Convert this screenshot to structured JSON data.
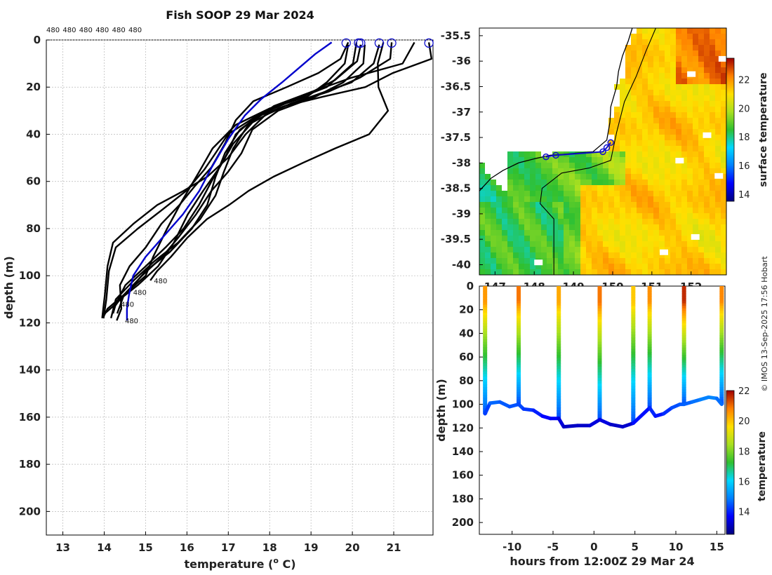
{
  "title": "Fish SOOP 29 Mar 2024",
  "copyright": "© IMOS 13-Sep-2025 17:56 Hobart",
  "colors": {
    "profile": "#000000",
    "mean": "#0000cc",
    "marker": "#1010cc",
    "land": "#ffffff",
    "coast": "#000000"
  },
  "chart_data": [
    {
      "name": "profiles",
      "type": "line",
      "xlabel": "temperature (° C)",
      "xlabel_main": "temperature (",
      "xlabel_sup": "o",
      "xlabel_end": " C)",
      "ylabel": "depth (m)",
      "xlim": [
        12.6,
        21.95
      ],
      "ylim": [
        0,
        210
      ],
      "xticks": [
        13,
        14,
        15,
        16,
        17,
        18,
        19,
        20,
        21
      ],
      "yticks": [
        0,
        20,
        40,
        60,
        80,
        100,
        120,
        140,
        160,
        180,
        200
      ],
      "grid": true,
      "top_labels": [
        "480",
        "480",
        "480",
        "480",
        "480",
        "480"
      ],
      "bottom_labels": [
        "480",
        "480",
        "480",
        "480"
      ],
      "surface_markers": [
        19.85,
        20.15,
        20.2,
        20.65,
        20.95,
        21.85
      ],
      "series": [
        {
          "name": "cast-1",
          "points": [
            [
              19.9,
              2
            ],
            [
              19.8,
              10
            ],
            [
              19.4,
              18
            ],
            [
              18.9,
              24
            ],
            [
              18.0,
              29
            ],
            [
              17.2,
              36
            ],
            [
              16.6,
              46
            ],
            [
              16.3,
              56
            ],
            [
              15.9,
              68
            ],
            [
              15.5,
              80
            ],
            [
              15.2,
              92
            ],
            [
              15.0,
              100
            ],
            [
              14.6,
              106
            ],
            [
              14.3,
              112
            ],
            [
              14.0,
              116
            ]
          ]
        },
        {
          "name": "cast-2",
          "points": [
            [
              20.2,
              2
            ],
            [
              20.1,
              9
            ],
            [
              19.6,
              17
            ],
            [
              18.8,
              24
            ],
            [
              17.9,
              30
            ],
            [
              17.3,
              38
            ],
            [
              16.9,
              48
            ],
            [
              16.7,
              58
            ],
            [
              16.5,
              70
            ],
            [
              16.1,
              80
            ],
            [
              15.6,
              90
            ],
            [
              15.0,
              98
            ],
            [
              14.6,
              106
            ],
            [
              14.1,
              114
            ],
            [
              13.95,
              118
            ]
          ]
        },
        {
          "name": "cast-3",
          "points": [
            [
              20.65,
              2
            ],
            [
              20.5,
              10
            ],
            [
              20.0,
              18
            ],
            [
              19.0,
              24
            ],
            [
              18.2,
              29
            ],
            [
              17.6,
              35
            ],
            [
              17.1,
              44
            ],
            [
              16.8,
              54
            ],
            [
              16.4,
              64
            ],
            [
              16.0,
              74
            ],
            [
              15.7,
              86
            ],
            [
              15.3,
              96
            ],
            [
              14.8,
              104
            ],
            [
              14.4,
              110
            ],
            [
              14.2,
              114
            ]
          ]
        },
        {
          "name": "cast-4",
          "points": [
            [
              20.95,
              1
            ],
            [
              20.9,
              8
            ],
            [
              20.2,
              16
            ],
            [
              19.4,
              22
            ],
            [
              18.5,
              27
            ],
            [
              17.9,
              32
            ],
            [
              17.4,
              40
            ],
            [
              17.0,
              50
            ],
            [
              16.5,
              58
            ],
            [
              15.9,
              64
            ],
            [
              15.3,
              70
            ],
            [
              14.7,
              78
            ],
            [
              14.2,
              86
            ],
            [
              14.1,
              96
            ],
            [
              14.0,
              108
            ],
            [
              13.95,
              118
            ]
          ]
        },
        {
          "name": "cast-5",
          "points": [
            [
              21.85,
              1
            ],
            [
              21.9,
              8
            ],
            [
              21.0,
              14
            ],
            [
              20.3,
              20
            ],
            [
              19.3,
              24
            ],
            [
              18.4,
              28
            ],
            [
              17.6,
              33
            ],
            [
              17.0,
              40
            ],
            [
              16.7,
              48
            ],
            [
              16.4,
              55
            ],
            [
              16.0,
              64
            ],
            [
              15.4,
              72
            ],
            [
              14.8,
              80
            ],
            [
              14.3,
              88
            ],
            [
              14.1,
              98
            ],
            [
              14.05,
              110
            ],
            [
              14.0,
              118
            ]
          ]
        },
        {
          "name": "cast-6",
          "points": [
            [
              20.75,
              1
            ],
            [
              20.6,
              10
            ],
            [
              20.65,
              20
            ],
            [
              20.85,
              30
            ],
            [
              20.4,
              40
            ],
            [
              19.6,
              46
            ],
            [
              18.8,
              52
            ],
            [
              18.1,
              58
            ],
            [
              17.5,
              64
            ],
            [
              17.0,
              70
            ],
            [
              16.5,
              76
            ],
            [
              16.0,
              84
            ],
            [
              15.6,
              92
            ],
            [
              15.3,
              98
            ],
            [
              15.1,
              102
            ]
          ]
        },
        {
          "name": "cast-7",
          "points": [
            [
              20.1,
              1
            ],
            [
              20.0,
              10
            ],
            [
              19.4,
              20
            ],
            [
              18.5,
              26
            ],
            [
              17.7,
              32
            ],
            [
              17.2,
              40
            ],
            [
              16.9,
              50
            ],
            [
              16.6,
              60
            ],
            [
              16.3,
              70
            ],
            [
              15.9,
              80
            ],
            [
              15.5,
              88
            ],
            [
              15.0,
              96
            ],
            [
              14.5,
              104
            ],
            [
              14.3,
              112
            ],
            [
              14.2,
              116
            ]
          ]
        },
        {
          "name": "cast-8",
          "points": [
            [
              19.9,
              1
            ],
            [
              19.7,
              8
            ],
            [
              19.2,
              14
            ],
            [
              18.4,
              20
            ],
            [
              17.6,
              26
            ],
            [
              17.2,
              34
            ],
            [
              16.9,
              44
            ],
            [
              16.6,
              54
            ],
            [
              16.2,
              62
            ],
            [
              15.8,
              70
            ],
            [
              15.4,
              78
            ],
            [
              15.0,
              88
            ],
            [
              14.6,
              96
            ],
            [
              14.4,
              104
            ],
            [
              14.4,
              114
            ],
            [
              14.3,
              119
            ]
          ]
        },
        {
          "name": "cast-9",
          "points": [
            [
              21.5,
              1
            ],
            [
              21.2,
              10
            ],
            [
              20.0,
              16
            ],
            [
              19.0,
              22
            ],
            [
              18.1,
              28
            ],
            [
              17.5,
              36
            ],
            [
              17.1,
              46
            ],
            [
              16.9,
              56
            ],
            [
              16.7,
              66
            ],
            [
              16.3,
              76
            ],
            [
              15.8,
              86
            ],
            [
              15.2,
              94
            ],
            [
              14.7,
              102
            ],
            [
              14.3,
              110
            ],
            [
              14.15,
              118
            ]
          ]
        },
        {
          "name": "cast-10",
          "points": [
            [
              20.3,
              2
            ],
            [
              20.25,
              10
            ],
            [
              19.8,
              18
            ],
            [
              19.1,
              24
            ],
            [
              18.2,
              30
            ],
            [
              17.6,
              38
            ],
            [
              17.3,
              48
            ],
            [
              17.0,
              56
            ],
            [
              16.6,
              64
            ],
            [
              16.2,
              74
            ],
            [
              15.8,
              84
            ],
            [
              15.4,
              92
            ],
            [
              14.9,
              100
            ],
            [
              14.5,
              108
            ],
            [
              14.3,
              116
            ]
          ]
        }
      ],
      "mean_series": {
        "name": "mean",
        "points": [
          [
            19.5,
            1
          ],
          [
            19.1,
            6
          ],
          [
            18.7,
            12
          ],
          [
            18.3,
            18
          ],
          [
            17.8,
            25
          ],
          [
            17.4,
            32
          ],
          [
            17.0,
            42
          ],
          [
            16.6,
            54
          ],
          [
            16.3,
            64
          ],
          [
            15.9,
            74
          ],
          [
            15.4,
            84
          ],
          [
            15.0,
            92
          ],
          [
            14.7,
            100
          ],
          [
            14.6,
            108
          ],
          [
            14.55,
            114
          ],
          [
            14.55,
            119
          ]
        ]
      }
    },
    {
      "name": "sst-map",
      "type": "heatmap",
      "xticks": [
        147,
        148,
        149,
        150,
        151,
        152
      ],
      "xlim": [
        146.6,
        152.9
      ],
      "ylim": [
        -40.2,
        -35.35
      ],
      "yticks": [
        -35.5,
        -36,
        -36.5,
        -37,
        -37.5,
        -38,
        -38.5,
        -39,
        -39.5,
        -40
      ],
      "ytick_labels": [
        "-35.5",
        "-36",
        "-36.5",
        "-37",
        "-37.5",
        "-38",
        "-38.5",
        "-39",
        "-39.5",
        "-40"
      ],
      "xtick_labels": [
        "147",
        "148",
        "149",
        "150",
        "151",
        "152"
      ],
      "colorbar": {
        "label": "surface temperature",
        "min": 13.5,
        "max": 23.5,
        "ticks": [
          14,
          16,
          18,
          20,
          22
        ],
        "tick_labels": [
          "14",
          "16",
          "18",
          "20",
          "22"
        ]
      },
      "stations": [
        [
          148.3,
          -37.88
        ],
        [
          148.55,
          -37.85
        ],
        [
          149.75,
          -37.78
        ],
        [
          149.85,
          -37.7
        ],
        [
          149.95,
          -37.6
        ]
      ]
    },
    {
      "name": "section",
      "type": "scatter",
      "xlabel": "hours from 12:00Z 29 Mar 24",
      "ylabel": "depth (m)",
      "xlim": [
        -14,
        16
      ],
      "ylim": [
        0,
        210
      ],
      "xticks": [
        -10,
        -5,
        0,
        5,
        10,
        15
      ],
      "xtick_labels": [
        "-10",
        "-5",
        "0",
        "5",
        "10",
        "15"
      ],
      "yticks": [
        0,
        20,
        40,
        60,
        80,
        100,
        120,
        140,
        160,
        180,
        200
      ],
      "ytick_labels": [
        "0",
        "20",
        "40",
        "60",
        "80",
        "100",
        "120",
        "140",
        "160",
        "180",
        "200"
      ],
      "colorbar": {
        "label": "temperature",
        "min": 12.5,
        "max": 22,
        "ticks": [
          14,
          16,
          18,
          20,
          22
        ],
        "tick_labels": [
          "14",
          "16",
          "18",
          "20",
          "22"
        ]
      },
      "casts": [
        {
          "t": -13.3,
          "max_depth": 108,
          "surface_temp": 20.5
        },
        {
          "t": -9.2,
          "max_depth": 100,
          "surface_temp": 20.9
        },
        {
          "t": -4.3,
          "max_depth": 112,
          "surface_temp": 20.3
        },
        {
          "t": 0.7,
          "max_depth": 113,
          "surface_temp": 20.9
        },
        {
          "t": 4.8,
          "max_depth": 116,
          "surface_temp": 19.9
        },
        {
          "t": 6.8,
          "max_depth": 103,
          "surface_temp": 20.6
        },
        {
          "t": 11.0,
          "max_depth": 100,
          "surface_temp": 21.6
        },
        {
          "t": 15.6,
          "max_depth": 100,
          "surface_temp": 20.7
        }
      ],
      "bottom_track": [
        [
          -13.3,
          108
        ],
        [
          -12.7,
          99
        ],
        [
          -11.5,
          98
        ],
        [
          -10.3,
          102
        ],
        [
          -9.2,
          100
        ],
        [
          -8.6,
          104
        ],
        [
          -7.4,
          105
        ],
        [
          -6.3,
          110
        ],
        [
          -5.3,
          112
        ],
        [
          -4.3,
          112
        ],
        [
          -3.7,
          119
        ],
        [
          -2.0,
          118
        ],
        [
          -0.5,
          118
        ],
        [
          0.7,
          113
        ],
        [
          2.0,
          117
        ],
        [
          3.5,
          119
        ],
        [
          4.8,
          116
        ],
        [
          6.8,
          103
        ],
        [
          7.5,
          110
        ],
        [
          8.5,
          108
        ],
        [
          9.5,
          103
        ],
        [
          10.5,
          100
        ],
        [
          11.0,
          100
        ],
        [
          12.0,
          98
        ],
        [
          13.0,
          96
        ],
        [
          14.0,
          94
        ],
        [
          15.0,
          95
        ],
        [
          15.6,
          100
        ]
      ]
    }
  ]
}
